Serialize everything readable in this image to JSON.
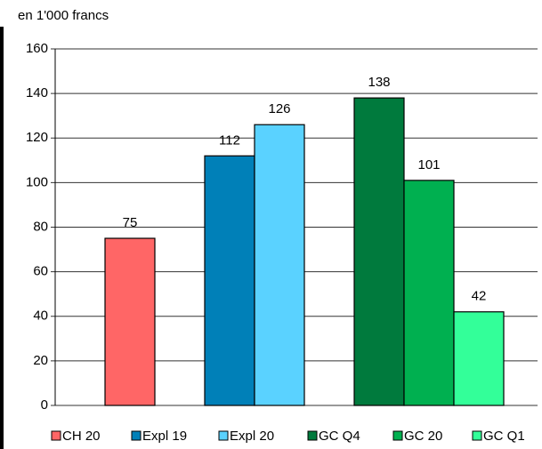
{
  "chart_data": {
    "type": "bar",
    "y_axis_label": "en 1'000 francs",
    "categories": [
      null
    ],
    "series": [
      {
        "name": "CH 20",
        "color": "#ff6666",
        "values": [
          75
        ]
      },
      {
        "name": "Expl 19",
        "color": "#0080b8",
        "values": [
          112
        ]
      },
      {
        "name": "Expl 20",
        "color": "#5ad2ff",
        "values": [
          126
        ]
      },
      {
        "name": "GC Q4",
        "color": "#007a3d",
        "values": [
          138
        ]
      },
      {
        "name": "GC 20",
        "color": "#00b050",
        "values": [
          101
        ]
      },
      {
        "name": "GC Q1",
        "color": "#33ff99",
        "values": [
          42
        ]
      }
    ],
    "ylim": [
      0,
      160
    ],
    "yticks": [
      0,
      20,
      40,
      60,
      80,
      100,
      120,
      140,
      160
    ],
    "grid": true,
    "legend": "bottom"
  }
}
